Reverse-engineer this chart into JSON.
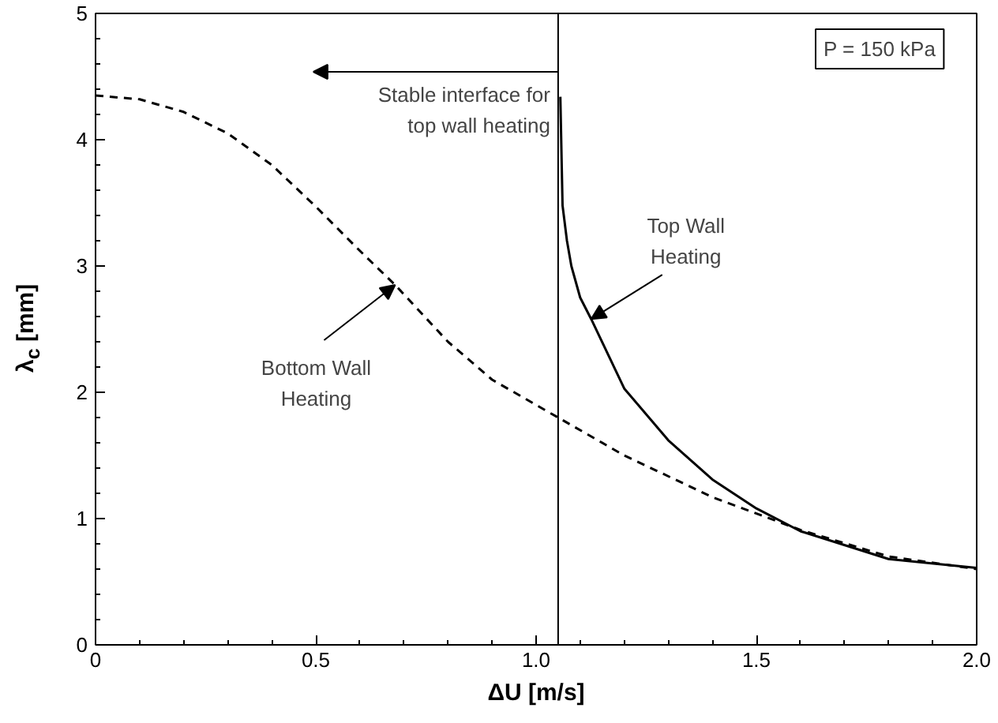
{
  "chart_data": {
    "type": "line",
    "xlabel": "ΔU [m/s]",
    "ylabel": "λ$_{c}$ [mm]",
    "xlim": [
      0,
      2.0
    ],
    "ylim": [
      0,
      5
    ],
    "xticks": [
      0,
      {
        "value": 0.1,
        "label": null
      },
      {
        "value": 0.2,
        "label": null
      },
      {
        "value": 0.3,
        "label": null
      },
      {
        "value": 0.4,
        "label": null
      },
      0.5,
      {
        "value": 0.6,
        "label": null
      },
      {
        "value": 0.7,
        "label": null
      },
      {
        "value": 0.8,
        "label": null
      },
      {
        "value": 0.9,
        "label": null
      },
      {
        "value": 1.0,
        "label": "1.0"
      },
      {
        "value": 1.1,
        "label": null
      },
      {
        "value": 1.2,
        "label": null
      },
      {
        "value": 1.3,
        "label": null
      },
      {
        "value": 1.4,
        "label": null
      },
      1.5,
      {
        "value": 1.6,
        "label": null
      },
      {
        "value": 1.7,
        "label": null
      },
      {
        "value": 1.8,
        "label": null
      },
      {
        "value": 1.9,
        "label": null
      },
      {
        "value": 2.0,
        "label": "2.0"
      }
    ],
    "yticks": [
      0,
      {
        "value": 0.2,
        "label": null
      },
      {
        "value": 0.4,
        "label": null
      },
      {
        "value": 0.6,
        "label": null
      },
      {
        "value": 0.8,
        "label": null
      },
      1,
      {
        "value": 1.2,
        "label": null
      },
      {
        "value": 1.4,
        "label": null
      },
      {
        "value": 1.6,
        "label": null
      },
      {
        "value": 1.8,
        "label": null
      },
      2,
      {
        "value": 2.2,
        "label": null
      },
      {
        "value": 2.4,
        "label": null
      },
      {
        "value": 2.6,
        "label": null
      },
      {
        "value": 2.8,
        "label": null
      },
      3,
      {
        "value": 3.2,
        "label": null
      },
      {
        "value": 3.4,
        "label": null
      },
      {
        "value": 3.6,
        "label": null
      },
      {
        "value": 3.8,
        "label": null
      },
      4,
      {
        "value": 4.2,
        "label": null
      },
      {
        "value": 4.4,
        "label": null
      },
      {
        "value": 4.6,
        "label": null
      },
      {
        "value": 4.8,
        "label": null
      },
      5
    ],
    "grid": false,
    "series": [
      {
        "color": "#000000",
        "line_style": "dashed",
        "x": [
          0,
          0.1,
          0.2,
          0.3,
          0.4,
          0.5,
          0.6,
          0.68,
          0.8,
          0.9,
          1.05,
          1.2,
          1.4,
          1.6,
          1.8,
          2.0
        ],
        "values": [
          4.35,
          4.32,
          4.22,
          4.05,
          3.8,
          3.47,
          3.12,
          2.85,
          2.4,
          2.1,
          1.8,
          1.5,
          1.17,
          0.91,
          0.7,
          0.6
        ]
      },
      {
        "color": "#000000",
        "line_style": "solid",
        "x": [
          1.055,
          1.06,
          1.07,
          1.08,
          1.1,
          1.125,
          1.2,
          1.3,
          1.4,
          1.5,
          1.6,
          1.8,
          2.0
        ],
        "values": [
          4.34,
          3.48,
          3.2,
          3.0,
          2.75,
          2.58,
          2.03,
          1.62,
          1.31,
          1.08,
          0.9,
          0.68,
          0.61
        ]
      }
    ],
    "ref_lines": [
      {
        "axis": "x",
        "value": 1.05,
        "label": "Stable interface for\ntop wall heating",
        "color": "#000000"
      }
    ],
    "annotations": [
      {
        "text": "Bottom Wall\nHeating",
        "x": 0.68,
        "y": 2.85
      },
      {
        "text": "Top Wall\nHeating",
        "x": 1.125,
        "y": 2.58
      },
      "P = 150 kPa"
    ]
  }
}
